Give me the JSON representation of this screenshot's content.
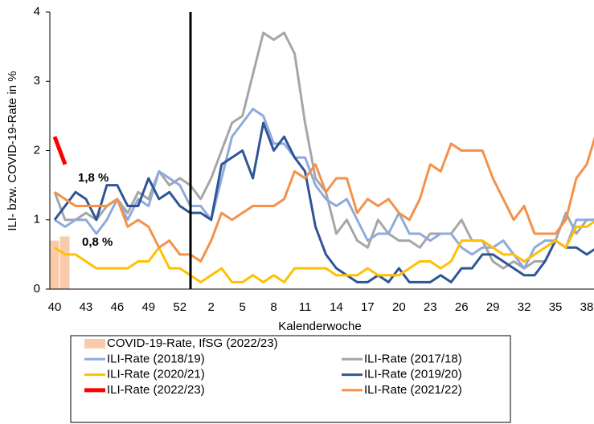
{
  "chart_data": {
    "type": "line",
    "x_label": "Kalenderwoche",
    "y_label": "ILI- bzw. COVID-19-Rate in %",
    "categories": [
      "40",
      null,
      null,
      "43",
      null,
      null,
      "46",
      null,
      null,
      "49",
      null,
      null,
      "52",
      null,
      null,
      "2",
      null,
      null,
      "5",
      null,
      null,
      "8",
      null,
      null,
      "11",
      null,
      null,
      "14",
      null,
      null,
      "17",
      null,
      null,
      "20",
      null,
      null,
      "23",
      null,
      null,
      "26",
      null,
      null,
      "29",
      null,
      null,
      "32",
      null,
      null,
      "35",
      null,
      null,
      "38",
      null
    ],
    "ylim": [
      0,
      4
    ],
    "yticks": [
      0,
      1,
      2,
      3,
      4
    ],
    "series": [
      {
        "name": "COVID-19-Rate, IfSG (2022/23)",
        "type": "bar",
        "color": "#f8cbad",
        "values": [
          0.7,
          0.76,
          null,
          null,
          null,
          null,
          null,
          null,
          null,
          null,
          null,
          null,
          null,
          null,
          null,
          null,
          null,
          null,
          null,
          null,
          null,
          null,
          null,
          null,
          null,
          null,
          null,
          null,
          null,
          null,
          null,
          null,
          null,
          null,
          null,
          null,
          null,
          null,
          null,
          null,
          null,
          null,
          null,
          null,
          null,
          null,
          null,
          null,
          null,
          null,
          null,
          null,
          null
        ]
      },
      {
        "name": "ILI-Rate (2017/18)",
        "color": "#a6a6a6",
        "values": [
          1.4,
          1.0,
          1.0,
          1.1,
          1.0,
          1.2,
          1.3,
          1.1,
          1.4,
          1.3,
          1.7,
          1.5,
          1.6,
          1.5,
          1.3,
          1.6,
          2.0,
          2.4,
          2.5,
          3.1,
          3.7,
          3.6,
          3.7,
          3.4,
          2.4,
          1.6,
          1.4,
          0.8,
          1.0,
          0.7,
          0.6,
          1.0,
          0.8,
          0.7,
          0.7,
          0.6,
          0.8,
          0.8,
          0.8,
          1.0,
          0.7,
          0.7,
          0.4,
          0.3,
          0.4,
          0.3,
          0.4,
          0.4,
          0.7,
          1.1,
          0.8,
          1.0,
          1.0
        ]
      },
      {
        "name": "ILI-Rate (2018/19)",
        "color": "#8faadc",
        "values": [
          1.0,
          0.9,
          1.0,
          1.0,
          0.8,
          1.0,
          1.3,
          1.0,
          1.3,
          1.2,
          1.7,
          1.6,
          1.5,
          1.2,
          1.2,
          1.0,
          1.6,
          2.2,
          2.4,
          2.6,
          2.5,
          2.1,
          2.1,
          1.9,
          1.9,
          1.5,
          1.3,
          1.2,
          1.3,
          1.0,
          0.7,
          0.8,
          0.8,
          1.1,
          0.8,
          0.8,
          0.7,
          0.8,
          0.8,
          0.6,
          0.5,
          0.6,
          0.6,
          0.7,
          0.5,
          0.3,
          0.6,
          0.7,
          0.7,
          0.6,
          1.0,
          1.0,
          1.0
        ]
      },
      {
        "name": "ILI-Rate (2019/20)",
        "color": "#2f5597",
        "values": [
          1.0,
          1.2,
          1.4,
          1.3,
          1.0,
          1.5,
          1.5,
          1.2,
          1.2,
          1.6,
          1.3,
          1.4,
          1.2,
          1.1,
          1.1,
          1.0,
          1.8,
          1.9,
          2.0,
          1.6,
          2.4,
          2.0,
          2.2,
          1.9,
          1.7,
          0.9,
          0.5,
          0.3,
          0.2,
          0.1,
          0.1,
          0.2,
          0.1,
          0.3,
          0.1,
          0.1,
          0.1,
          0.2,
          0.1,
          0.3,
          0.3,
          0.5,
          0.5,
          0.4,
          0.3,
          0.2,
          0.2,
          0.4,
          0.7,
          0.6,
          0.6,
          0.5,
          0.6
        ]
      },
      {
        "name": "ILI-Rate (2020/21)",
        "color": "#ffc000",
        "values": [
          0.6,
          0.5,
          0.5,
          0.4,
          0.3,
          0.3,
          0.3,
          0.3,
          0.4,
          0.4,
          0.6,
          0.3,
          0.3,
          0.2,
          0.1,
          0.2,
          0.3,
          0.1,
          0.1,
          0.2,
          0.1,
          0.2,
          0.1,
          0.3,
          0.3,
          0.3,
          0.3,
          0.2,
          0.2,
          0.2,
          0.3,
          0.2,
          0.2,
          0.2,
          0.3,
          0.4,
          0.4,
          0.3,
          0.4,
          0.7,
          0.7,
          0.7,
          0.6,
          0.5,
          0.5,
          0.4,
          0.5,
          0.6,
          0.7,
          0.6,
          0.9,
          0.9,
          1.0
        ]
      },
      {
        "name": "ILI-Rate (2021/22)",
        "color": "#f4914a",
        "values": [
          1.4,
          1.3,
          1.2,
          1.2,
          1.2,
          1.2,
          1.3,
          0.9,
          1.0,
          0.9,
          0.6,
          0.7,
          0.5,
          0.5,
          0.4,
          0.7,
          1.1,
          1.0,
          1.1,
          1.2,
          1.2,
          1.2,
          1.3,
          1.7,
          1.6,
          1.8,
          1.4,
          1.6,
          1.6,
          1.1,
          1.3,
          1.2,
          1.3,
          1.1,
          1.0,
          1.3,
          1.8,
          1.7,
          2.1,
          2.0,
          2.0,
          2.0,
          1.6,
          1.3,
          1.0,
          1.2,
          0.8,
          0.8,
          0.8,
          1.0,
          1.6,
          1.8,
          2.3
        ]
      },
      {
        "name": "ILI-Rate (2022/23)",
        "color": "#ff0000",
        "width": 5,
        "values": [
          2.2,
          1.8,
          null,
          null,
          null,
          null,
          null,
          null,
          null,
          null,
          null,
          null,
          null,
          null,
          null,
          null,
          null,
          null,
          null,
          null,
          null,
          null,
          null,
          null,
          null,
          null,
          null,
          null,
          null,
          null,
          null,
          null,
          null,
          null,
          null,
          null,
          null,
          null,
          null,
          null,
          null,
          null,
          null,
          null,
          null,
          null,
          null,
          null,
          null,
          null,
          null,
          null,
          null
        ]
      }
    ],
    "annotations": [
      "1,8 %",
      "0,8 %"
    ]
  }
}
